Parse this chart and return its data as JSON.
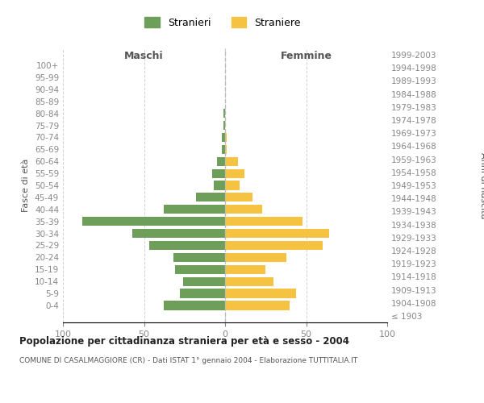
{
  "age_groups": [
    "100+",
    "95-99",
    "90-94",
    "85-89",
    "80-84",
    "75-79",
    "70-74",
    "65-69",
    "60-64",
    "55-59",
    "50-54",
    "45-49",
    "40-44",
    "35-39",
    "30-34",
    "25-29",
    "20-24",
    "15-19",
    "10-14",
    "5-9",
    "0-4"
  ],
  "birth_years": [
    "≤ 1903",
    "1904-1908",
    "1909-1913",
    "1914-1918",
    "1919-1923",
    "1924-1928",
    "1929-1933",
    "1934-1938",
    "1939-1943",
    "1944-1948",
    "1949-1953",
    "1954-1958",
    "1959-1963",
    "1964-1968",
    "1969-1973",
    "1974-1978",
    "1979-1983",
    "1984-1988",
    "1989-1993",
    "1994-1998",
    "1999-2003"
  ],
  "maschi": [
    0,
    0,
    0,
    0,
    1,
    1,
    2,
    2,
    5,
    8,
    7,
    18,
    38,
    88,
    57,
    47,
    32,
    31,
    26,
    28,
    38
  ],
  "femmine": [
    0,
    0,
    0,
    0,
    0,
    0,
    1,
    1,
    8,
    12,
    9,
    17,
    23,
    48,
    64,
    60,
    38,
    25,
    30,
    44,
    40
  ],
  "color_maschi": "#6d9e5a",
  "color_femmine": "#f5c242",
  "title": "Popolazione per cittadinanza straniera per età e sesso - 2004",
  "subtitle": "COMUNE DI CASALMAGGIORE (CR) - Dati ISTAT 1° gennaio 2004 - Elaborazione TUTTITALIA.IT",
  "xlabel_left": "Maschi",
  "xlabel_right": "Femmine",
  "ylabel_left": "Fasce di età",
  "ylabel_right": "Anni di nascita",
  "xlim": 100,
  "legend_stranieri": "Stranieri",
  "legend_straniere": "Straniere",
  "bg_color": "#ffffff",
  "grid_color": "#cccccc",
  "axis_label_color": "#555555",
  "tick_color": "#888888",
  "title_color": "#222222",
  "subtitle_color": "#555555"
}
